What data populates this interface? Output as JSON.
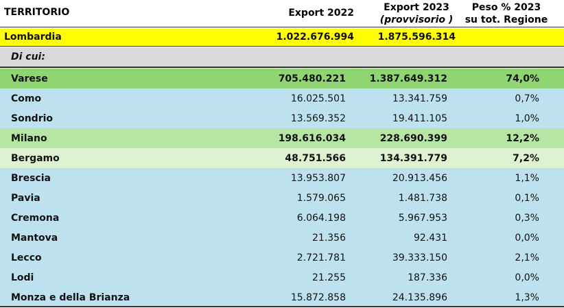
{
  "header": {
    "territorio": "TERRITORIO",
    "export_2022": "Export 2022",
    "export_2023_line1": "Export 2023",
    "export_2023_line2": "(provvisorio )",
    "peso_line1": "Peso % 2023",
    "peso_line2": "su tot. Regione"
  },
  "region": {
    "name": "Lombardia",
    "export_2022": "1.022.676.994",
    "export_2023": "1.875.596.314"
  },
  "di_cui": "Di cui:",
  "rows": [
    {
      "name": "Varese",
      "export_2022": "705.480.221",
      "export_2023": "1.387.649.312",
      "peso": "74,0%",
      "bold": true,
      "bg": "varese"
    },
    {
      "name": "Como",
      "export_2022": "16.025.501",
      "export_2023": "13.341.759",
      "peso": "0,7%",
      "bold": false,
      "bg": "blue"
    },
    {
      "name": "Sondrio",
      "export_2022": "13.569.352",
      "export_2023": "19.411.105",
      "peso": "1,0%",
      "bold": false,
      "bg": "blue"
    },
    {
      "name": "Milano",
      "export_2022": "198.616.034",
      "export_2023": "228.690.399",
      "peso": "12,2%",
      "bold": true,
      "bg": "milano"
    },
    {
      "name": "Bergamo",
      "export_2022": "48.751.566",
      "export_2023": "134.391.779",
      "peso": "7,2%",
      "bold": true,
      "bg": "bergamo"
    },
    {
      "name": "Brescia",
      "export_2022": "13.953.807",
      "export_2023": "20.913.456",
      "peso": "1,1%",
      "bold": false,
      "bg": "blue"
    },
    {
      "name": "Pavia",
      "export_2022": "1.579.065",
      "export_2023": "1.481.738",
      "peso": "0,1%",
      "bold": false,
      "bg": "blue"
    },
    {
      "name": "Cremona",
      "export_2022": "6.064.198",
      "export_2023": "5.967.953",
      "peso": "0,3%",
      "bold": false,
      "bg": "blue"
    },
    {
      "name": "Mantova",
      "export_2022": "21.356",
      "export_2023": "92.431",
      "peso": "0,0%",
      "bold": false,
      "bg": "blue"
    },
    {
      "name": "Lecco",
      "export_2022": "2.721.781",
      "export_2023": "39.333.150",
      "peso": "2,1%",
      "bold": false,
      "bg": "blue"
    },
    {
      "name": "Lodi",
      "export_2022": "21.255",
      "export_2023": "187.336",
      "peso": "0,0%",
      "bold": false,
      "bg": "blue"
    },
    {
      "name": "Monza e della Brianza",
      "export_2022": "15.872.858",
      "export_2023": "24.135.896",
      "peso": "1,3%",
      "bold": false,
      "bg": "blue"
    }
  ]
}
